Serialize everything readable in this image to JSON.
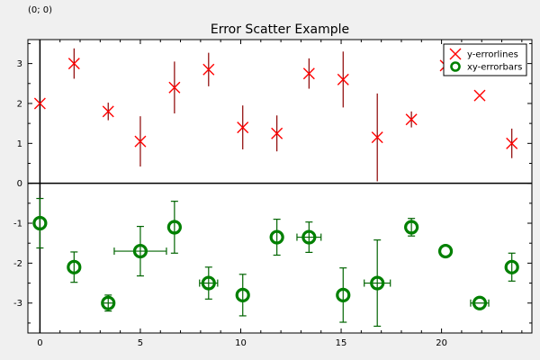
{
  "coordinate_readout": "(0; 0)",
  "chart_data": {
    "type": "scatter",
    "title": "Error Scatter Example",
    "xlabel": "",
    "ylabel": "",
    "xlim": [
      -0.6,
      24.5
    ],
    "ylim": [
      -3.75,
      3.6
    ],
    "xticks": [
      0,
      5,
      10,
      15,
      20
    ],
    "yticks": [
      -3,
      -2,
      -1,
      0,
      1,
      2,
      3
    ],
    "zero_lines": true,
    "grid": false,
    "legend": "top-right",
    "series": [
      {
        "name": "y-errorlines",
        "marker": "x",
        "color": "#ff0000",
        "line_color": "#8b0000",
        "points": [
          {
            "x": 0.0,
            "y": 2.0,
            "yerr": 0.0
          },
          {
            "x": 1.7,
            "y": 3.0,
            "yerr": 0.38
          },
          {
            "x": 3.4,
            "y": 1.8,
            "yerr": 0.22
          },
          {
            "x": 5.0,
            "y": 1.05,
            "yerr": 0.63
          },
          {
            "x": 6.7,
            "y": 2.4,
            "yerr": 0.65
          },
          {
            "x": 8.4,
            "y": 2.85,
            "yerr": 0.42
          },
          {
            "x": 10.1,
            "y": 1.4,
            "yerr": 0.55
          },
          {
            "x": 11.8,
            "y": 1.25,
            "yerr": 0.45
          },
          {
            "x": 13.4,
            "y": 2.75,
            "yerr": 0.38
          },
          {
            "x": 15.1,
            "y": 2.6,
            "yerr": 0.7
          },
          {
            "x": 16.8,
            "y": 1.15,
            "yerr": 1.1
          },
          {
            "x": 18.5,
            "y": 1.6,
            "yerr": 0.2
          },
          {
            "x": 20.2,
            "y": 2.95,
            "yerr": 0.0
          },
          {
            "x": 21.9,
            "y": 2.2,
            "yerr": 0.0
          },
          {
            "x": 23.5,
            "y": 1.0,
            "yerr": 0.37
          }
        ]
      },
      {
        "name": "xy-errorbars",
        "marker": "o",
        "color": "#008000",
        "line_color": "#006400",
        "points": [
          {
            "x": 0.0,
            "y": -1.0,
            "xerr": 0.0,
            "yerr": 0.62
          },
          {
            "x": 1.7,
            "y": -2.1,
            "xerr": 0.0,
            "yerr": 0.38
          },
          {
            "x": 3.4,
            "y": -3.0,
            "xerr": 0.25,
            "yerr": 0.2
          },
          {
            "x": 5.0,
            "y": -1.7,
            "xerr": 1.3,
            "yerr": 0.62
          },
          {
            "x": 6.7,
            "y": -1.1,
            "xerr": 0.0,
            "yerr": 0.65
          },
          {
            "x": 8.4,
            "y": -2.5,
            "xerr": 0.45,
            "yerr": 0.4
          },
          {
            "x": 10.1,
            "y": -2.8,
            "xerr": 0.0,
            "yerr": 0.52
          },
          {
            "x": 11.8,
            "y": -1.35,
            "xerr": 0.0,
            "yerr": 0.45
          },
          {
            "x": 13.4,
            "y": -1.35,
            "xerr": 0.6,
            "yerr": 0.38
          },
          {
            "x": 15.1,
            "y": -2.8,
            "xerr": 0.0,
            "yerr": 0.68
          },
          {
            "x": 16.8,
            "y": -2.5,
            "xerr": 0.65,
            "yerr": 1.08
          },
          {
            "x": 18.5,
            "y": -1.1,
            "xerr": 0.0,
            "yerr": 0.22
          },
          {
            "x": 20.2,
            "y": -1.7,
            "xerr": 0.0,
            "yerr": 0.0
          },
          {
            "x": 21.9,
            "y": -3.0,
            "xerr": 0.45,
            "yerr": 0.0
          },
          {
            "x": 23.5,
            "y": -2.1,
            "xerr": 0.0,
            "yerr": 0.35
          }
        ]
      }
    ]
  }
}
